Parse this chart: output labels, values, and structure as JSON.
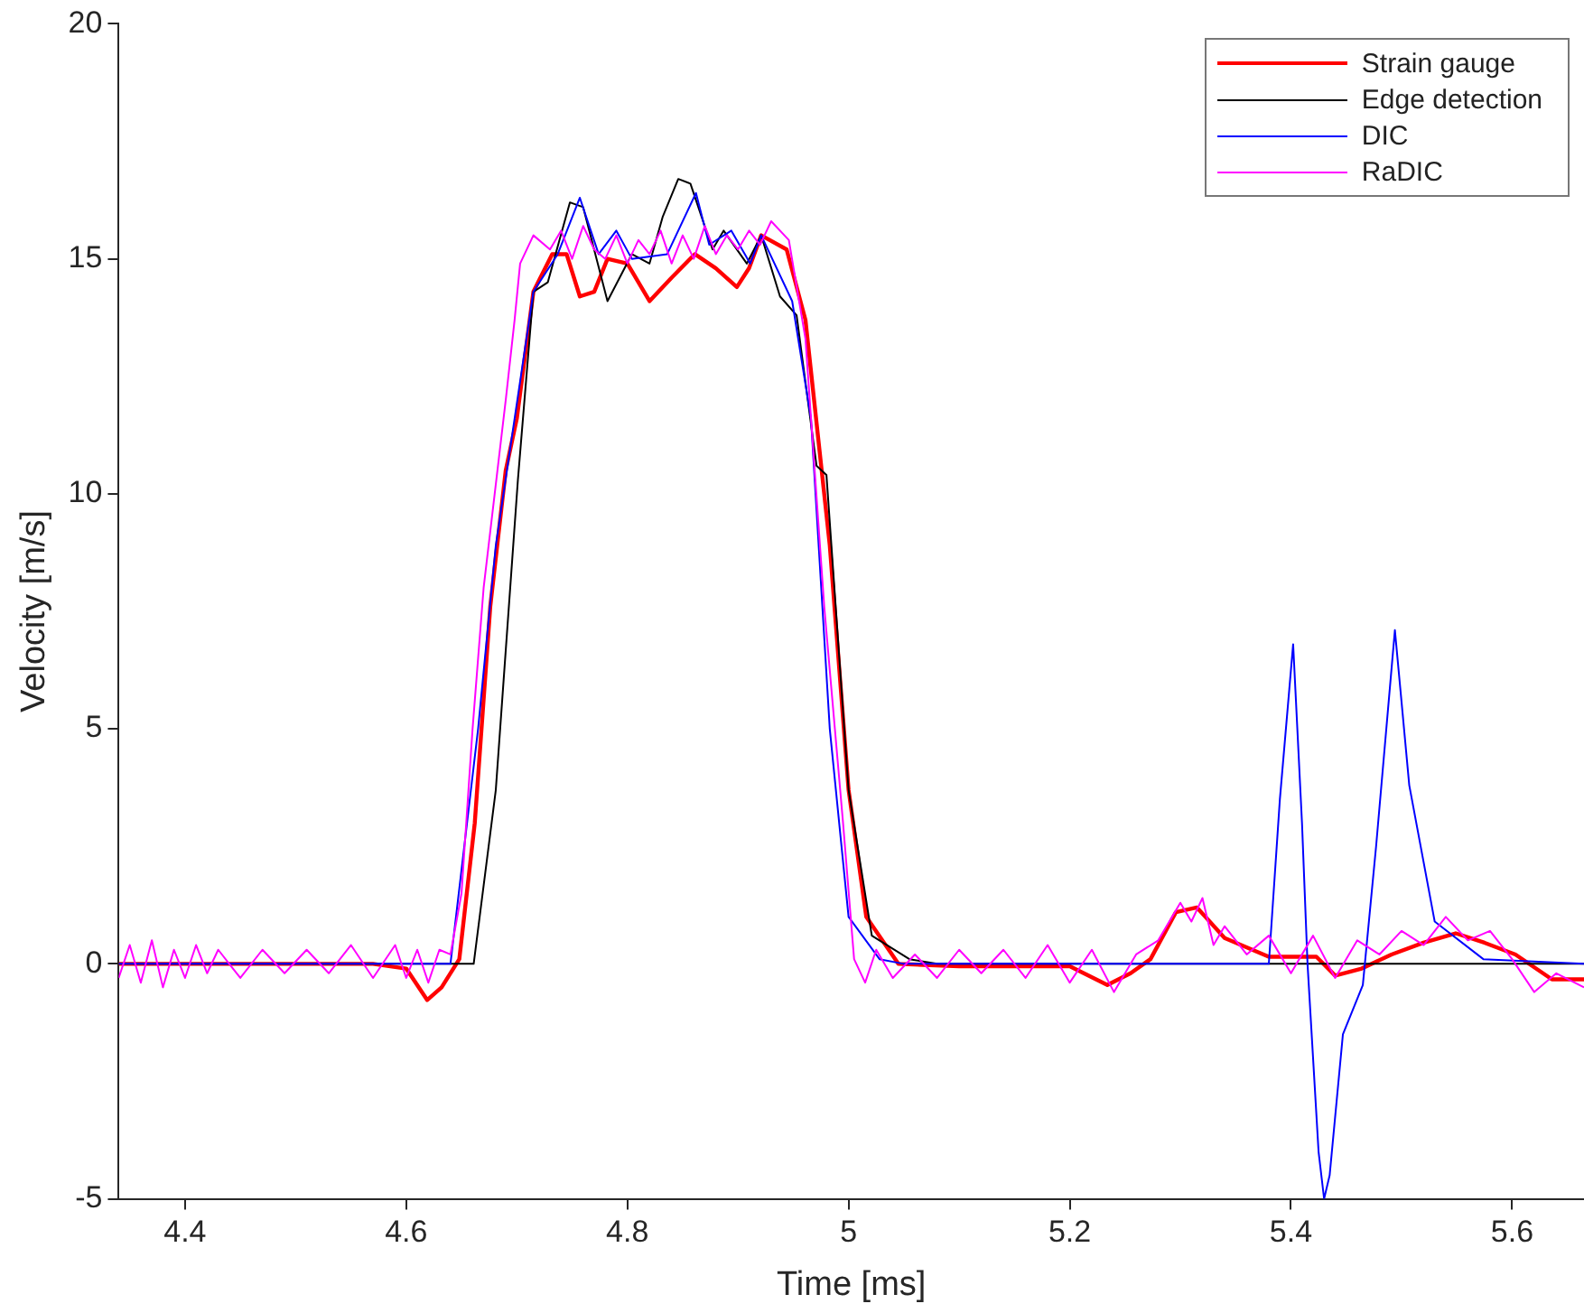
{
  "chart_data": {
    "type": "line",
    "xlabel": "Time [ms]",
    "ylabel": "Velocity [m/s]",
    "xlim": [
      4.34,
      5.665
    ],
    "xticks": [
      4.4,
      4.6,
      4.8,
      5,
      5.2,
      5.4,
      5.6
    ],
    "ylim": [
      -5,
      20
    ],
    "yticks": [
      -5,
      0,
      5,
      10,
      15,
      20
    ],
    "grid": false,
    "legend": "top right",
    "marker": "none",
    "line_style": "solid",
    "series": [
      {
        "name": "Strain gauge",
        "color": "#ff0000",
        "x": [
          4.34,
          4.45,
          4.52,
          4.57,
          4.6,
          4.619,
          4.632,
          4.648,
          4.662,
          4.676,
          4.69,
          4.7,
          4.715,
          4.732,
          4.745,
          4.757,
          4.77,
          4.782,
          4.8,
          4.82,
          4.84,
          4.861,
          4.88,
          4.899,
          4.91,
          4.921,
          4.944,
          4.961,
          4.983,
          5.0,
          5.016,
          5.045,
          5.1,
          5.2,
          5.234,
          5.255,
          5.273,
          5.296,
          5.315,
          5.34,
          5.38,
          5.423,
          5.44,
          5.464,
          5.491,
          5.52,
          5.549,
          5.575,
          5.603,
          5.636,
          5.665
        ],
        "values": [
          0,
          0,
          0,
          0,
          -0.1,
          -0.77,
          -0.5,
          0.1,
          3,
          7.6,
          10.5,
          11.6,
          14.3,
          15.1,
          15.1,
          14.2,
          14.3,
          15.0,
          14.9,
          14.1,
          14.6,
          15.1,
          14.8,
          14.4,
          14.8,
          15.5,
          15.2,
          13.7,
          8.9,
          3.7,
          1.0,
          0,
          -0.05,
          -0.05,
          -0.45,
          -0.2,
          0.1,
          1.1,
          1.2,
          0.55,
          0.15,
          0.15,
          -0.25,
          -0.1,
          0.2,
          0.45,
          0.65,
          0.45,
          0.2,
          -0.33,
          -0.33
        ]
      },
      {
        "name": "Edge detection",
        "color": "#000000",
        "x": [
          4.34,
          4.661,
          4.681,
          4.701,
          4.715,
          4.728,
          4.748,
          4.76,
          4.782,
          4.804,
          4.82,
          4.832,
          4.846,
          4.857,
          4.877,
          4.887,
          4.908,
          4.921,
          4.938,
          4.953,
          4.971,
          4.98,
          5.0,
          5.021,
          5.055,
          5.08,
          5.665
        ],
        "values": [
          0,
          0,
          3.7,
          10.3,
          14.3,
          14.5,
          16.2,
          16.1,
          14.1,
          15.1,
          14.9,
          15.9,
          16.7,
          16.6,
          15.2,
          15.6,
          14.9,
          15.5,
          14.2,
          13.8,
          10.6,
          10.4,
          3.7,
          0.6,
          0.1,
          0,
          0
        ]
      },
      {
        "name": "DIC",
        "color": "#0000ff",
        "x": [
          4.34,
          4.64,
          4.665,
          4.681,
          4.698,
          4.715,
          4.737,
          4.757,
          4.774,
          4.79,
          4.804,
          4.836,
          4.862,
          4.874,
          4.894,
          4.911,
          4.921,
          4.949,
          4.966,
          4.983,
          5.0,
          5.028,
          5.05,
          5.38,
          5.39,
          5.402,
          5.41,
          5.415,
          5.425,
          5.43,
          5.435,
          5.447,
          5.465,
          5.477,
          5.494,
          5.507,
          5.53,
          5.574,
          5.665
        ],
        "values": [
          0,
          0,
          5.0,
          8.9,
          11.6,
          14.3,
          15.1,
          16.3,
          15.1,
          15.6,
          15.0,
          15.1,
          16.4,
          15.3,
          15.6,
          14.9,
          15.5,
          14.1,
          11.6,
          5.0,
          1.0,
          0.1,
          0,
          0,
          3.5,
          6.8,
          3,
          0,
          -4,
          -5,
          -4.5,
          -1.5,
          -0.45,
          2.5,
          7.1,
          3.8,
          0.9,
          0.1,
          0
        ]
      },
      {
        "name": "RaDIC",
        "color": "#ff00ff",
        "x": [
          4.34,
          4.35,
          4.36,
          4.37,
          4.38,
          4.39,
          4.4,
          4.41,
          4.42,
          4.43,
          4.45,
          4.47,
          4.49,
          4.51,
          4.53,
          4.55,
          4.57,
          4.59,
          4.6,
          4.61,
          4.62,
          4.63,
          4.64,
          4.65,
          4.66,
          4.67,
          4.68,
          4.69,
          4.698,
          4.703,
          4.715,
          4.73,
          4.74,
          4.75,
          4.76,
          4.77,
          4.78,
          4.79,
          4.8,
          4.81,
          4.82,
          4.83,
          4.84,
          4.85,
          4.86,
          4.87,
          4.88,
          4.89,
          4.9,
          4.91,
          4.92,
          4.93,
          4.946,
          4.961,
          4.978,
          4.995,
          5.005,
          5.015,
          5.025,
          5.04,
          5.06,
          5.08,
          5.1,
          5.12,
          5.14,
          5.16,
          5.18,
          5.2,
          5.22,
          5.24,
          5.26,
          5.28,
          5.3,
          5.31,
          5.32,
          5.33,
          5.34,
          5.36,
          5.38,
          5.4,
          5.42,
          5.44,
          5.46,
          5.48,
          5.5,
          5.52,
          5.54,
          5.56,
          5.58,
          5.6,
          5.62,
          5.64,
          5.665
        ],
        "values": [
          -0.3,
          0.4,
          -0.4,
          0.5,
          -0.5,
          0.3,
          -0.3,
          0.4,
          -0.2,
          0.3,
          -0.3,
          0.3,
          -0.2,
          0.3,
          -0.2,
          0.4,
          -0.3,
          0.4,
          -0.3,
          0.3,
          -0.4,
          0.3,
          0.2,
          1.5,
          5,
          8,
          10,
          12,
          13.7,
          14.9,
          15.5,
          15.2,
          15.6,
          15.0,
          15.7,
          15.2,
          15.0,
          15.5,
          14.9,
          15.4,
          15.1,
          15.6,
          14.9,
          15.5,
          15.0,
          15.7,
          15.1,
          15.5,
          15.2,
          15.6,
          15.3,
          15.8,
          15.4,
          13.3,
          7.6,
          3.0,
          0.1,
          -0.4,
          0.3,
          -0.3,
          0.2,
          -0.3,
          0.3,
          -0.2,
          0.3,
          -0.3,
          0.4,
          -0.4,
          0.3,
          -0.6,
          0.2,
          0.5,
          1.3,
          0.9,
          1.4,
          0.4,
          0.8,
          0.2,
          0.6,
          -0.2,
          0.6,
          -0.3,
          0.5,
          0.2,
          0.7,
          0.4,
          1.0,
          0.5,
          0.7,
          0.1,
          -0.6,
          -0.2,
          -0.5
        ]
      }
    ]
  }
}
